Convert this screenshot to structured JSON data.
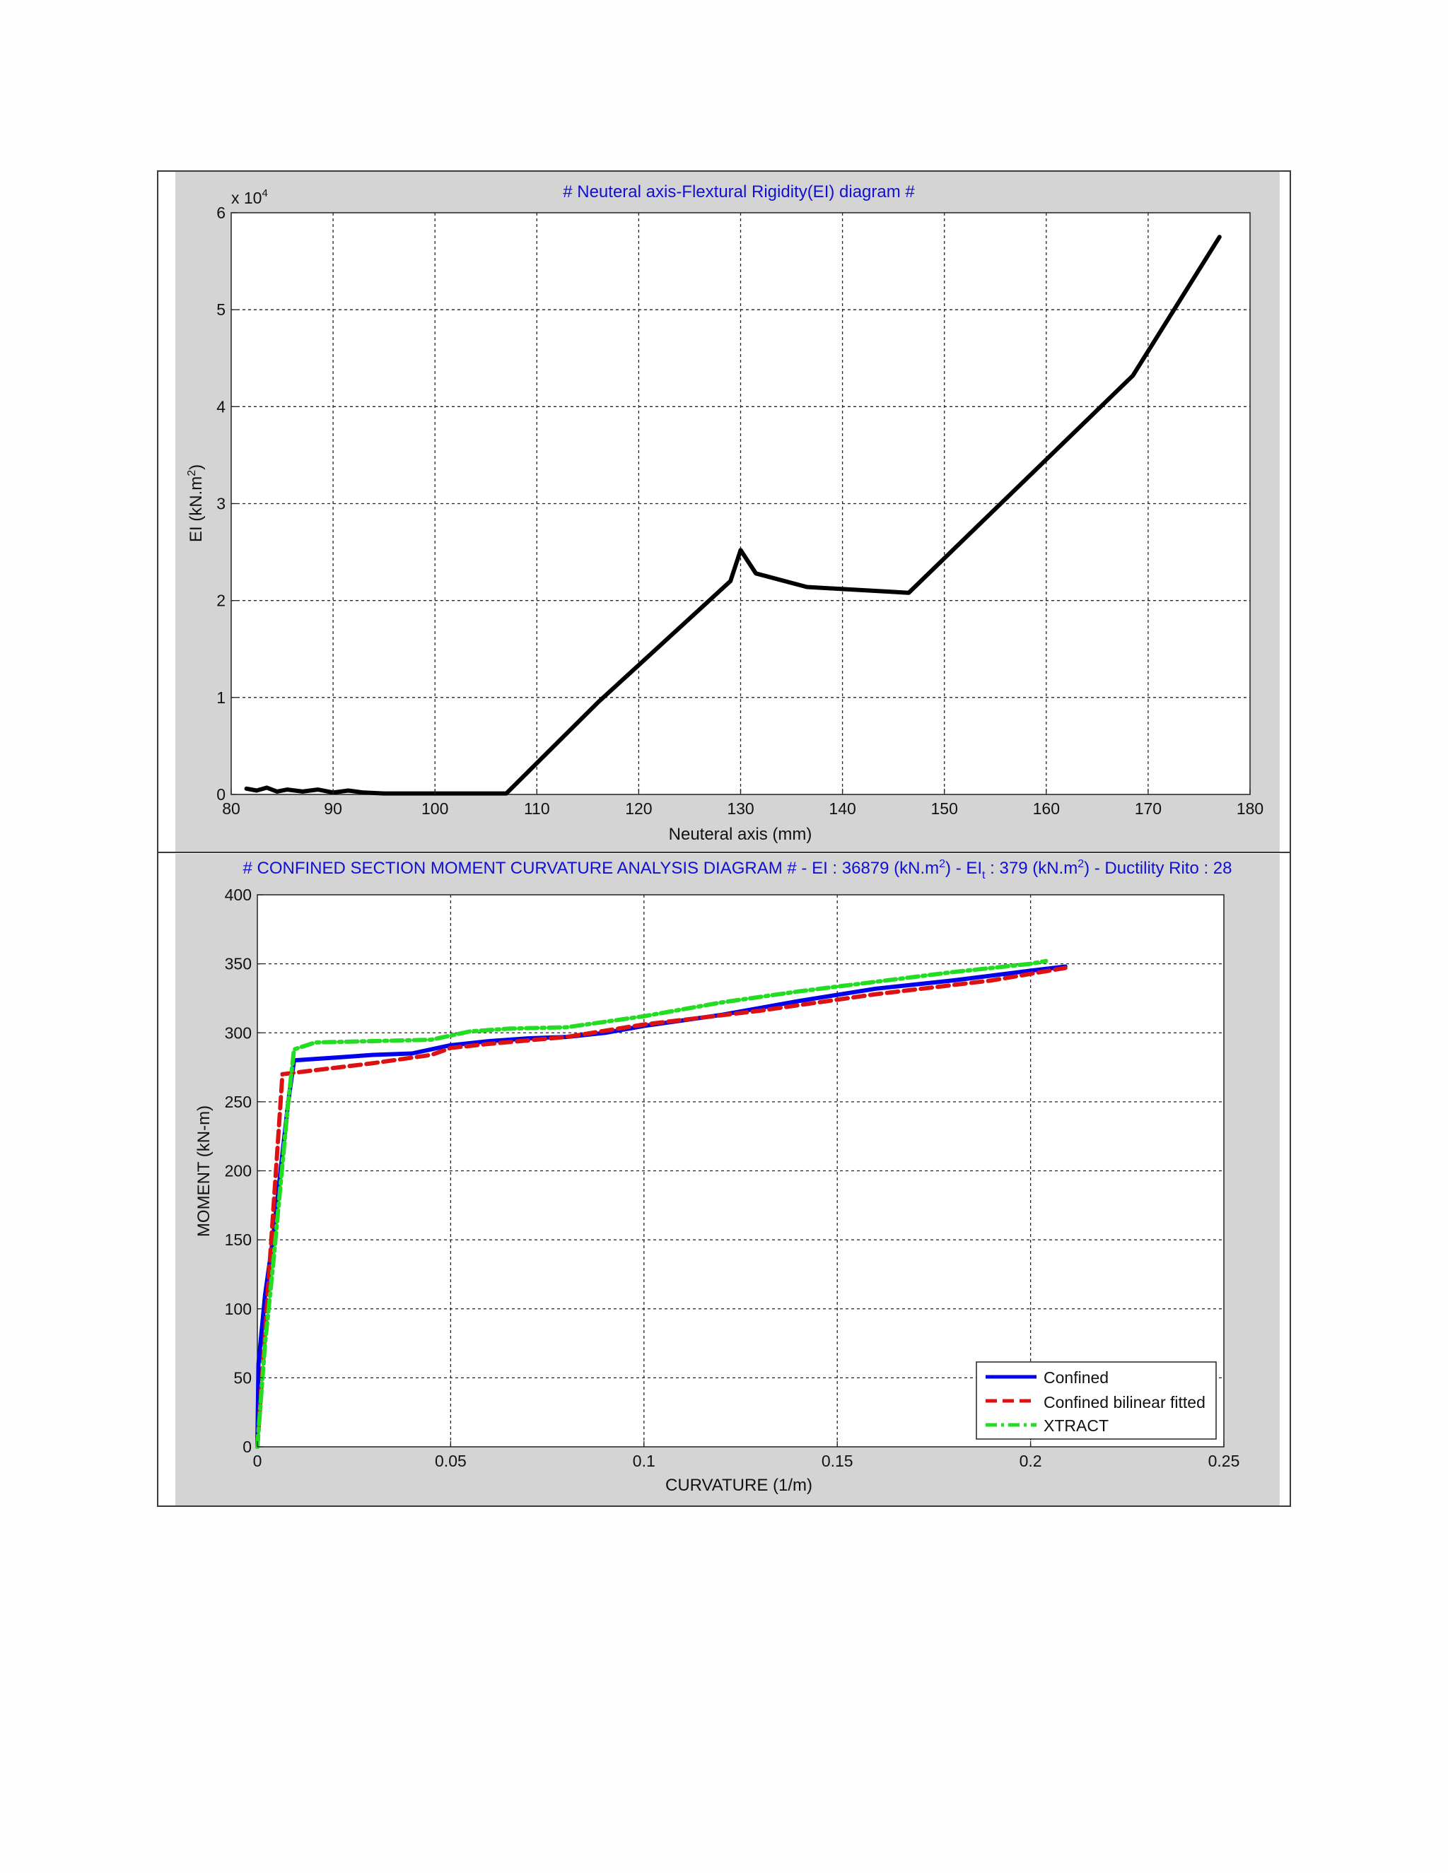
{
  "colors": {
    "panel_bg": "#d4d4d4",
    "title": "#1010d0",
    "grid": "#222222"
  },
  "chart_data": [
    {
      "type": "line",
      "title": "# Neuteral axis-Flextural Rigidity(EI) diagram #",
      "xlabel": "Neuteral axis (mm)",
      "ylabel_prefix": "EI (kN.m",
      "ylabel_sup": "2",
      "ylabel_suffix": ")",
      "y_exponent_base": "x 10",
      "y_exponent_power": "4",
      "xlim": [
        80,
        180
      ],
      "ylim": [
        0,
        6
      ],
      "xticks": [
        "80",
        "90",
        "100",
        "110",
        "120",
        "130",
        "140",
        "150",
        "160",
        "170",
        "180"
      ],
      "yticks": [
        "0",
        "1",
        "2",
        "3",
        "4",
        "5",
        "6"
      ],
      "grid": true,
      "series": [
        {
          "color": "#000000",
          "points": [
            [
              81.5,
              0.06
            ],
            [
              82.5,
              0.04
            ],
            [
              83.5,
              0.07
            ],
            [
              84.5,
              0.03
            ],
            [
              85.5,
              0.05
            ],
            [
              87,
              0.03
            ],
            [
              88.5,
              0.05
            ],
            [
              90,
              0.02
            ],
            [
              91.5,
              0.04
            ],
            [
              93,
              0.02
            ],
            [
              95,
              0.01
            ],
            [
              100,
              0.01
            ],
            [
              107,
              0.01
            ],
            [
              116,
              0.95
            ],
            [
              129,
              2.2
            ],
            [
              130,
              2.52
            ],
            [
              131.5,
              2.28
            ],
            [
              136.5,
              2.14
            ],
            [
              146.5,
              2.08
            ],
            [
              168.5,
              4.32
            ],
            [
              177,
              5.75
            ]
          ]
        }
      ]
    },
    {
      "type": "line",
      "title_parts": {
        "main": "# CONFINED SECTION MOMENT CURVATURE ANALYSIS DIAGRAM # -  EI : 36879 (kN.m",
        "sup1": "2",
        "mid1": ")  -  EI",
        "sub": "t",
        "mid2": " : 379 (kN.m",
        "sup2": "2",
        "end": ")  -  Ductility Rito : 28"
      },
      "xlabel": "CURVATURE (1/m)",
      "ylabel": "MOMENT (kN-m)",
      "xlim": [
        0,
        0.25
      ],
      "ylim": [
        0,
        400
      ],
      "xticks": [
        "0",
        "0.05",
        "0.1",
        "0.15",
        "0.2",
        "0.25"
      ],
      "yticks": [
        "0",
        "50",
        "100",
        "150",
        "200",
        "250",
        "300",
        "350",
        "400"
      ],
      "grid": true,
      "legend_position": "bottom-right",
      "series": [
        {
          "name": "Confined",
          "color": "#0000ee",
          "dash": "solid",
          "points": [
            [
              0,
              0
            ],
            [
              0.0003,
              60
            ],
            [
              0.002,
              110
            ],
            [
              0.004,
              150
            ],
            [
              0.006,
              200
            ],
            [
              0.008,
              250
            ],
            [
              0.0095,
              280
            ],
            [
              0.02,
              282
            ],
            [
              0.03,
              284
            ],
            [
              0.04,
              285
            ],
            [
              0.05,
              291
            ],
            [
              0.06,
              294
            ],
            [
              0.07,
              296
            ],
            [
              0.08,
              297
            ],
            [
              0.09,
              300
            ],
            [
              0.1,
              305
            ],
            [
              0.12,
              313
            ],
            [
              0.14,
              323
            ],
            [
              0.16,
              332
            ],
            [
              0.18,
              338
            ],
            [
              0.2,
              345
            ],
            [
              0.209,
              348
            ]
          ]
        },
        {
          "name": "Confined bilinear fitted",
          "color": "#dd1111",
          "dash": "dashed",
          "points": [
            [
              0,
              0
            ],
            [
              0.0065,
              270
            ],
            [
              0.03,
              278
            ],
            [
              0.045,
              284
            ],
            [
              0.05,
              289
            ],
            [
              0.06,
              292
            ],
            [
              0.08,
              297
            ],
            [
              0.1,
              306
            ],
            [
              0.13,
              316
            ],
            [
              0.16,
              328
            ],
            [
              0.19,
              338
            ],
            [
              0.209,
              347
            ]
          ]
        },
        {
          "name": "XTRACT",
          "color": "#22dd22",
          "dash": "dashdot",
          "points": [
            [
              0,
              0
            ],
            [
              0.002,
              75
            ],
            [
              0.004,
              130
            ],
            [
              0.006,
              190
            ],
            [
              0.008,
              250
            ],
            [
              0.0095,
              288
            ],
            [
              0.015,
              293
            ],
            [
              0.03,
              294
            ],
            [
              0.045,
              295
            ],
            [
              0.055,
              301
            ],
            [
              0.065,
              303
            ],
            [
              0.08,
              304
            ],
            [
              0.09,
              308
            ],
            [
              0.1,
              312
            ],
            [
              0.12,
              322
            ],
            [
              0.14,
              330
            ],
            [
              0.16,
              337
            ],
            [
              0.18,
              344
            ],
            [
              0.2,
              350
            ],
            [
              0.204,
              352
            ]
          ]
        }
      ]
    }
  ]
}
